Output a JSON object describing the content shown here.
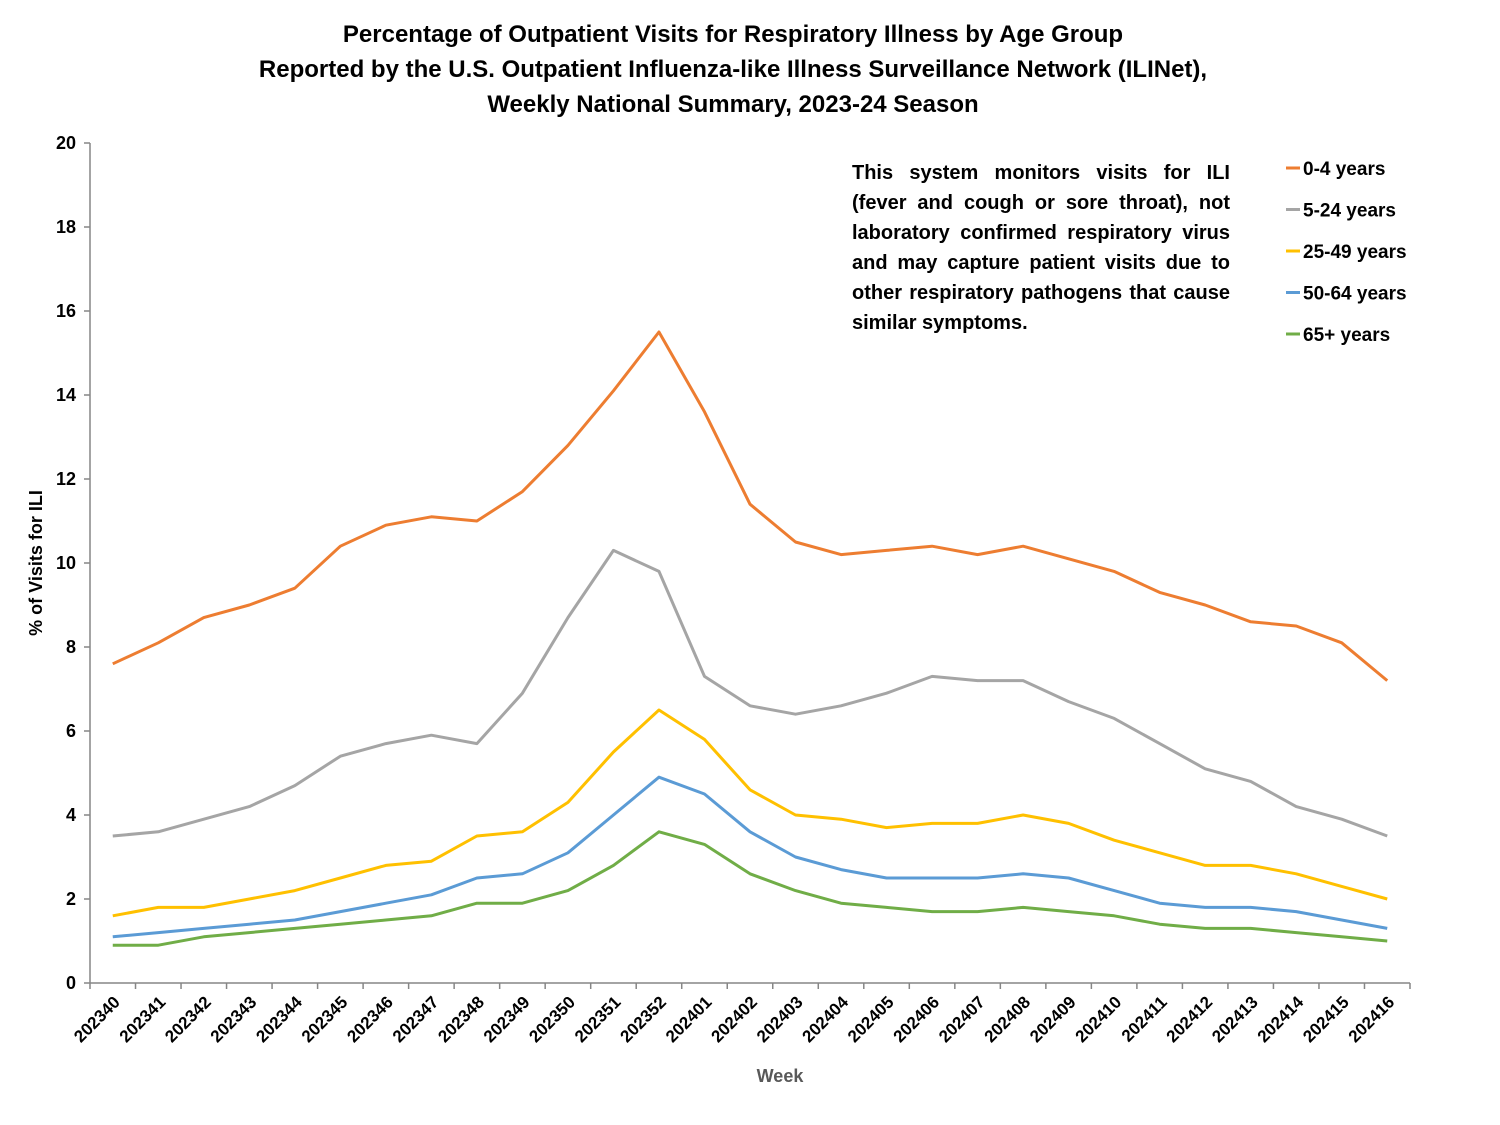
{
  "chart_data": {
    "type": "line",
    "title": [
      "Percentage of Outpatient Visits for Respiratory Illness by Age Group",
      "Reported by the U.S. Outpatient Influenza-like Illness Surveillance Network (ILINet),",
      "Weekly National Summary, 2023-24 Season"
    ],
    "x_label": "Week",
    "y_label": "% of Visits for ILI",
    "annotation": "This system monitors visits for ILI (fever and cough or sore throat), not laboratory confirmed respiratory virus and may capture patient visits due to other respiratory pathogens that cause similar symptoms.",
    "categories": [
      "202340",
      "202341",
      "202342",
      "202343",
      "202344",
      "202345",
      "202346",
      "202347",
      "202348",
      "202349",
      "202350",
      "202351",
      "202352",
      "202401",
      "202402",
      "202403",
      "202404",
      "202405",
      "202406",
      "202407",
      "202408",
      "202409",
      "202410",
      "202411",
      "202412",
      "202413",
      "202414",
      "202415",
      "202416"
    ],
    "series": [
      {
        "name": "0-4 years",
        "color": "#ed7d31",
        "values": [
          7.6,
          8.1,
          8.7,
          9.0,
          9.4,
          10.4,
          10.9,
          11.1,
          11.0,
          11.7,
          12.8,
          14.1,
          15.5,
          13.6,
          11.4,
          10.5,
          10.2,
          10.3,
          10.4,
          10.2,
          10.4,
          10.1,
          9.8,
          9.3,
          9.0,
          8.6,
          8.5,
          8.1,
          7.2
        ]
      },
      {
        "name": "5-24 years",
        "color": "#a5a5a5",
        "values": [
          3.5,
          3.6,
          3.9,
          4.2,
          4.7,
          5.4,
          5.7,
          5.9,
          5.7,
          6.9,
          8.7,
          10.3,
          9.8,
          7.3,
          6.6,
          6.4,
          6.6,
          6.9,
          7.3,
          7.2,
          7.2,
          6.7,
          6.3,
          5.7,
          5.1,
          4.8,
          4.2,
          3.9,
          3.5
        ]
      },
      {
        "name": "25-49 years",
        "color": "#ffc000",
        "values": [
          1.6,
          1.8,
          1.8,
          2.0,
          2.2,
          2.5,
          2.8,
          2.9,
          3.5,
          3.6,
          4.3,
          5.5,
          6.5,
          5.8,
          4.6,
          4.0,
          3.9,
          3.7,
          3.8,
          3.8,
          4.0,
          3.8,
          3.4,
          3.1,
          2.8,
          2.8,
          2.6,
          2.3,
          2.0
        ]
      },
      {
        "name": "50-64 years",
        "color": "#5b9bd5",
        "values": [
          1.1,
          1.2,
          1.3,
          1.4,
          1.5,
          1.7,
          1.9,
          2.1,
          2.5,
          2.6,
          3.1,
          4.0,
          4.9,
          4.5,
          3.6,
          3.0,
          2.7,
          2.5,
          2.5,
          2.5,
          2.6,
          2.5,
          2.2,
          1.9,
          1.8,
          1.8,
          1.7,
          1.5,
          1.3
        ]
      },
      {
        "name": "65+ years",
        "color": "#70ad47",
        "values": [
          0.9,
          0.9,
          1.1,
          1.2,
          1.3,
          1.4,
          1.5,
          1.6,
          1.9,
          1.9,
          2.2,
          2.8,
          3.6,
          3.3,
          2.6,
          2.2,
          1.9,
          1.8,
          1.7,
          1.7,
          1.8,
          1.7,
          1.6,
          1.4,
          1.3,
          1.3,
          1.2,
          1.1,
          1.0
        ]
      }
    ],
    "ylim": [
      0,
      20
    ],
    "yticks": [
      0,
      2,
      4,
      6,
      8,
      10,
      12,
      14,
      16,
      18,
      20
    ],
    "grid": false,
    "legend": "top-right"
  }
}
